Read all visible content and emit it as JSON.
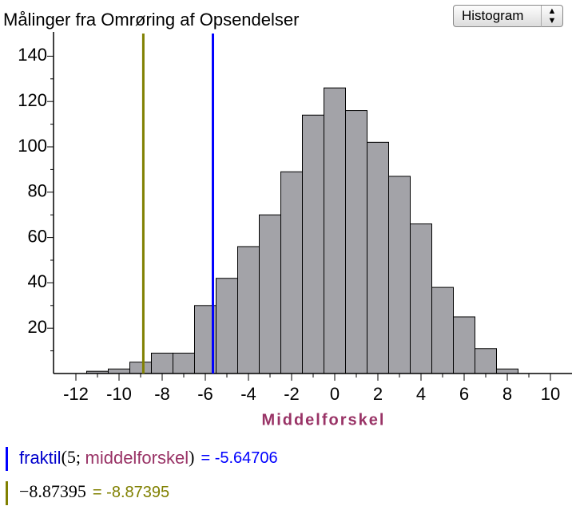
{
  "chart_data": {
    "type": "histogram",
    "title": "Målinger fra Omrøring af Opsendelser",
    "xlabel": "Middelforskel",
    "control": "Histogram",
    "bins": [
      -11.5,
      -10.5,
      -9.5,
      -8.5,
      -7.5,
      -6.5,
      -5.5,
      -4.5,
      -3.5,
      -2.5,
      -1.5,
      -0.5,
      0.5,
      1.5,
      2.5,
      3.5,
      4.5,
      5.5,
      6.5,
      7.5,
      8.5
    ],
    "values": [
      1,
      2,
      5,
      9,
      9,
      30,
      42,
      56,
      70,
      89,
      114,
      126,
      116,
      102,
      87,
      66,
      38,
      25,
      11,
      2
    ],
    "color": "#a3a3a8",
    "xlim": [
      -13,
      11
    ],
    "xticks": [
      -12,
      -10,
      -8,
      -6,
      -4,
      -2,
      0,
      2,
      4,
      6,
      8,
      10
    ],
    "ylim": [
      0,
      150
    ],
    "yticks": [
      20,
      40,
      60,
      80,
      100,
      120,
      140
    ],
    "minor_ticks": true,
    "lines": [
      {
        "value": -5.64706,
        "label": "= -5.64706",
        "color": "#0000ff",
        "formula": [
          {
            "text": "fraktil",
            "color": "#0000cc",
            "serif": false
          },
          {
            "text": "(5; ",
            "color": "#000000",
            "serif": true
          },
          {
            "text": "middelforskel",
            "color": "#993366",
            "serif": false
          },
          {
            "text": ")",
            "color": "#000000",
            "serif": true
          }
        ]
      },
      {
        "value": -8.87395,
        "label": "= -8.87395",
        "color": "#808000",
        "formula": [
          {
            "text": "−8.87395",
            "color": "#000000",
            "serif": true
          }
        ]
      }
    ]
  }
}
